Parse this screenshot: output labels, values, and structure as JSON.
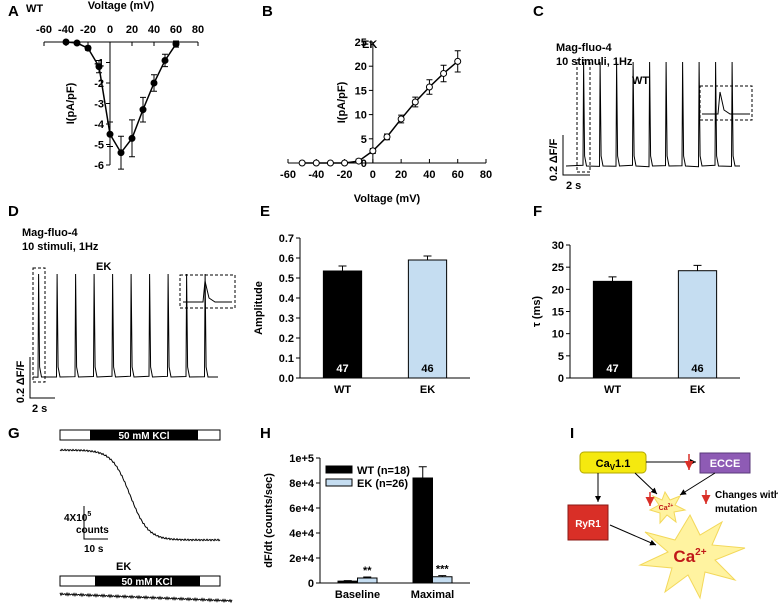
{
  "chart_data": [
    {
      "type": "line",
      "panel": "A",
      "x_label": "Voltage (mV)",
      "y_label": "I(pA/pF)",
      "x": [
        -40,
        -30,
        -20,
        -10,
        0,
        10,
        20,
        30,
        40,
        50,
        60
      ],
      "series": [
        {
          "name": "WT",
          "color": "#000000",
          "marker": "filled",
          "values": [
            0,
            -0.05,
            -0.3,
            -1.2,
            -4.5,
            -5.4,
            -4.7,
            -3.3,
            -2.0,
            -0.9,
            -0.1
          ],
          "errors": [
            0.05,
            0.05,
            0.1,
            0.3,
            0.6,
            0.8,
            0.9,
            0.6,
            0.4,
            0.3,
            0.15
          ]
        }
      ],
      "xlim": [
        -60,
        80
      ],
      "ylim": [
        -6,
        0
      ],
      "xticks": [
        -60,
        -40,
        -20,
        0,
        20,
        40,
        60,
        80
      ],
      "yticks": [
        -1,
        -2,
        -3,
        -4,
        -5,
        -6
      ]
    },
    {
      "type": "line",
      "panel": "B",
      "x_label": "Voltage (mV)",
      "y_label": "I(pA/pF)",
      "x": [
        -50,
        -40,
        -30,
        -20,
        -10,
        0,
        10,
        20,
        30,
        40,
        50,
        60
      ],
      "series": [
        {
          "name": "EK",
          "color": "#000000",
          "marker": "open",
          "values": [
            0,
            0,
            0,
            0,
            0.4,
            2.5,
            5.4,
            9.1,
            12.6,
            15.7,
            18.5,
            21
          ],
          "errors": [
            0.2,
            0.2,
            0.2,
            0.2,
            0.4,
            0.5,
            0.6,
            0.8,
            1.0,
            1.5,
            1.7,
            2.2
          ]
        }
      ],
      "xlim": [
        -60,
        80
      ],
      "ylim": [
        0,
        25
      ],
      "xticks": [
        -60,
        -40,
        -20,
        0,
        20,
        40,
        60,
        80
      ],
      "yticks": [
        0,
        5,
        10,
        15,
        20,
        25
      ]
    },
    {
      "type": "bar",
      "panel": "E",
      "y_label": "Amplitude",
      "categories": [
        "WT",
        "EK"
      ],
      "values": [
        0.535,
        0.59
      ],
      "errors": [
        0.025,
        0.02
      ],
      "colors": [
        "#000000",
        "#c5ddf1"
      ],
      "n": [
        47,
        46
      ],
      "ylim": [
        0,
        0.7
      ],
      "yticks": [
        {
          "value": 0,
          "label": "0.0"
        },
        0.1,
        0.2,
        0.3,
        0.4,
        0.5,
        0.6,
        0.7
      ]
    },
    {
      "type": "bar",
      "panel": "F",
      "y_label": "τ (ms)",
      "categories": [
        "WT",
        "EK"
      ],
      "values": [
        21.8,
        24.2
      ],
      "errors": [
        1.0,
        1.2
      ],
      "colors": [
        "#000000",
        "#c5ddf1"
      ],
      "n": [
        47,
        46
      ],
      "ylim": [
        0,
        30
      ],
      "yticks": [
        0,
        5,
        10,
        15,
        20,
        25,
        30
      ]
    },
    {
      "type": "bar",
      "panel": "H",
      "y_label": "dF/dt (counts/sec)",
      "categories": [
        "Baseline",
        "Maximal"
      ],
      "series": [
        {
          "name": "WT (n=18)",
          "color": "#000000",
          "values": [
            1500,
            84000
          ],
          "errors": [
            400,
            9000
          ]
        },
        {
          "name": "EK (n=26)",
          "color": "#c5ddf1",
          "values": [
            4000,
            5000
          ],
          "errors": [
            800,
            900
          ],
          "annotations": [
            "**",
            "***"
          ]
        }
      ],
      "ylim": [
        0,
        100000
      ],
      "yticks": [
        0,
        {
          "value": 20000,
          "label": "2e+4"
        },
        {
          "value": 40000,
          "label": "4e+4"
        },
        {
          "value": 60000,
          "label": "6e+4"
        },
        {
          "value": 80000,
          "label": "8e+4"
        },
        {
          "value": 100000,
          "label": "1e+5"
        }
      ]
    }
  ],
  "traces": {
    "C": {
      "panel": "C",
      "dye": "Mag-fluo-4",
      "protocol": "10 stimuli, 1Hz",
      "genotype": "WT",
      "y_scale": "0.2 ΔF/F",
      "x_scale": "2 s"
    },
    "D": {
      "panel": "D",
      "dye": "Mag-fluo-4",
      "protocol": "10 stimuli, 1Hz",
      "genotype": "EK",
      "y_scale": "0.2 ΔF/F",
      "x_scale": "2 s"
    },
    "G": {
      "panel": "G",
      "stimulus": "50 mM KCl",
      "y_scale": [
        "4X10",
        "5"
      ],
      "y_unit": "counts",
      "x_scale": "10 s",
      "genotype": "EK",
      "stimulus_ek": "50 mM KCl"
    }
  },
  "diagram": {
    "panel": "I",
    "cav": [
      "Ca",
      "V",
      "1.1"
    ],
    "ecce": "ECCE",
    "ryr1": "RyR1",
    "ca_small": [
      "Ca",
      "2+"
    ],
    "ca_big": [
      "Ca",
      "2+"
    ],
    "legend": [
      "Changes with EK",
      "mutation"
    ]
  }
}
